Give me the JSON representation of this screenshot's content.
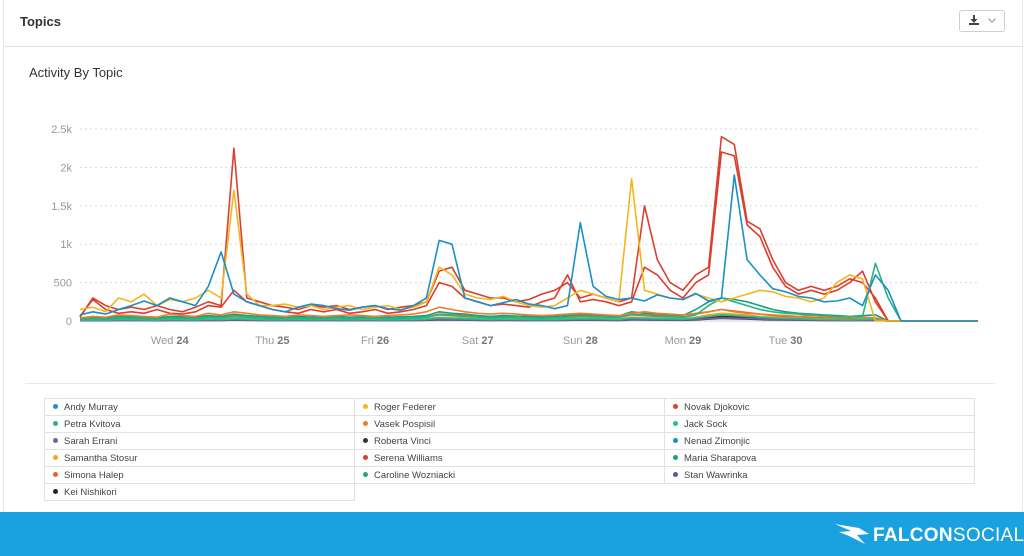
{
  "panel": {
    "title": "Topics",
    "export_icon": "download-icon",
    "dropdown_icon": "chevron-down-icon"
  },
  "footer": {
    "brand_bold": "FALCON",
    "brand_light": "SOCIAL",
    "logo_icon": "falcon-logo-icon"
  },
  "chart_data": {
    "type": "line",
    "title": "Activity By Topic",
    "xlabel": "",
    "ylabel": "",
    "x": [
      0,
      3,
      6,
      9,
      12,
      15,
      18,
      21,
      24,
      27,
      30,
      33,
      36,
      39,
      42,
      45,
      48,
      51,
      54,
      57,
      60,
      63,
      66,
      69,
      72,
      75,
      78,
      81,
      84,
      87,
      90,
      93,
      96,
      99,
      102,
      105,
      108,
      111,
      114,
      117,
      120,
      123,
      126,
      129,
      132,
      135,
      138,
      141,
      144,
      147,
      150,
      153,
      156,
      159,
      162,
      165,
      168,
      171,
      174,
      177,
      180,
      183,
      186,
      189,
      192,
      195,
      198,
      201,
      204,
      207,
      210
    ],
    "x_unit": "hours",
    "x_ticks": [
      {
        "x": 21,
        "day": "Wed",
        "num": "24"
      },
      {
        "x": 45,
        "day": "Thu",
        "num": "25"
      },
      {
        "x": 69,
        "day": "Fri",
        "num": "26"
      },
      {
        "x": 93,
        "day": "Sat",
        "num": "27"
      },
      {
        "x": 117,
        "day": "Sun",
        "num": "28"
      },
      {
        "x": 141,
        "day": "Mon",
        "num": "29"
      },
      {
        "x": 165,
        "day": "Tue",
        "num": "30"
      }
    ],
    "y_ticks": [
      {
        "v": 0,
        "label": "0"
      },
      {
        "v": 500,
        "label": "500"
      },
      {
        "v": 1000,
        "label": "1k"
      },
      {
        "v": 1500,
        "label": "1.5k"
      },
      {
        "v": 2000,
        "label": "2k"
      },
      {
        "v": 2500,
        "label": "2.5k"
      }
    ],
    "xlim": [
      0,
      210
    ],
    "ylim": [
      0,
      2500
    ],
    "grid": true,
    "legend_position": "bottom",
    "series": [
      {
        "name": "Andy Murray",
        "color": "#1a8fc8",
        "values": [
          80,
          120,
          90,
          150,
          200,
          260,
          200,
          300,
          250,
          200,
          450,
          900,
          350,
          250,
          200,
          150,
          120,
          180,
          220,
          200,
          160,
          140,
          180,
          200,
          160,
          140,
          200,
          300,
          1050,
          1000,
          300,
          250,
          200,
          240,
          280,
          220,
          200,
          160,
          200,
          1280,
          450,
          320,
          280,
          300,
          260,
          340,
          300,
          280,
          360,
          260,
          300,
          1900,
          800,
          600,
          420,
          380,
          320,
          300,
          250,
          260,
          300,
          200,
          600,
          400,
          0,
          0,
          0,
          0,
          0,
          0,
          0
        ]
      },
      {
        "name": "Roger Federer",
        "color": "#f3b61f",
        "values": [
          150,
          180,
          120,
          300,
          250,
          350,
          200,
          280,
          250,
          300,
          400,
          300,
          1700,
          350,
          200,
          200,
          220,
          180,
          200,
          150,
          180,
          200,
          150,
          180,
          200,
          150,
          180,
          250,
          700,
          600,
          350,
          300,
          280,
          320,
          250,
          200,
          180,
          200,
          300,
          400,
          350,
          300,
          250,
          1850,
          400,
          350,
          300,
          280,
          350,
          300,
          250,
          300,
          350,
          400,
          380,
          320,
          300,
          250,
          300,
          500,
          600,
          550,
          0,
          0,
          0,
          0,
          0,
          0,
          0,
          0,
          0
        ]
      },
      {
        "name": "Novak Djokovic",
        "color": "#d9412f",
        "values": [
          50,
          300,
          200,
          150,
          180,
          150,
          200,
          150,
          120,
          180,
          250,
          200,
          2250,
          300,
          250,
          200,
          180,
          150,
          200,
          180,
          200,
          150,
          180,
          200,
          150,
          180,
          200,
          250,
          650,
          700,
          400,
          350,
          300,
          300,
          250,
          280,
          350,
          400,
          500,
          300,
          350,
          300,
          250,
          300,
          1500,
          800,
          500,
          400,
          600,
          700,
          2400,
          2300,
          1300,
          1200,
          800,
          500,
          400,
          450,
          400,
          450,
          550,
          500,
          300,
          0,
          0,
          0,
          0,
          0,
          0,
          0,
          0
        ]
      },
      {
        "name": "Petra Kvitova",
        "color": "#2ab37f",
        "values": [
          20,
          30,
          25,
          40,
          35,
          30,
          25,
          40,
          35,
          30,
          50,
          40,
          60,
          50,
          40,
          30,
          35,
          40,
          30,
          35,
          40,
          30,
          35,
          40,
          30,
          35,
          40,
          50,
          80,
          70,
          60,
          50,
          40,
          50,
          45,
          40,
          35,
          40,
          50,
          60,
          55,
          50,
          45,
          80,
          70,
          60,
          55,
          50,
          80,
          200,
          300,
          250,
          200,
          150,
          120,
          100,
          90,
          80,
          70,
          60,
          50,
          60,
          750,
          300,
          0,
          0,
          0,
          0,
          0,
          0,
          0
        ]
      },
      {
        "name": "Vasek Pospisil",
        "color": "#ef7d2f",
        "values": [
          40,
          60,
          50,
          80,
          70,
          60,
          50,
          90,
          70,
          60,
          100,
          80,
          120,
          100,
          80,
          70,
          60,
          80,
          70,
          60,
          70,
          80,
          70,
          60,
          70,
          80,
          90,
          120,
          180,
          150,
          120,
          100,
          90,
          100,
          90,
          80,
          70,
          80,
          90,
          100,
          90,
          80,
          70,
          100,
          120,
          100,
          90,
          80,
          100,
          120,
          150,
          120,
          100,
          90,
          80,
          70,
          60,
          70,
          60,
          50,
          60,
          50,
          40,
          0,
          0,
          0,
          0,
          0,
          0,
          0,
          0
        ]
      },
      {
        "name": "Jack Sock",
        "color": "#21c28e",
        "values": [
          10,
          15,
          12,
          20,
          18,
          15,
          12,
          20,
          18,
          15,
          25,
          20,
          30,
          25,
          20,
          15,
          18,
          20,
          15,
          18,
          20,
          15,
          18,
          20,
          15,
          18,
          20,
          25,
          40,
          35,
          30,
          25,
          20,
          25,
          22,
          20,
          18,
          20,
          25,
          30,
          28,
          25,
          22,
          40,
          35,
          30,
          28,
          25,
          40,
          60,
          80,
          70,
          60,
          50,
          40,
          35,
          30,
          25,
          20,
          18,
          15,
          20,
          25,
          0,
          0,
          0,
          0,
          0,
          0,
          0,
          0
        ]
      },
      {
        "name": "Sarah Errani",
        "color": "#7b5ea7",
        "values": [
          5,
          8,
          6,
          10,
          9,
          8,
          6,
          10,
          9,
          8,
          12,
          10,
          15,
          12,
          10,
          8,
          9,
          10,
          8,
          9,
          10,
          8,
          9,
          10,
          8,
          9,
          10,
          12,
          20,
          18,
          15,
          12,
          10,
          12,
          11,
          10,
          9,
          10,
          12,
          15,
          14,
          12,
          11,
          20,
          18,
          15,
          14,
          12,
          20,
          30,
          40,
          35,
          30,
          25,
          20,
          18,
          15,
          12,
          10,
          9,
          8,
          10,
          12,
          0,
          0,
          0,
          0,
          0,
          0,
          0,
          0
        ]
      },
      {
        "name": "Roberta Vinci",
        "color": "#333333",
        "values": [
          8,
          10,
          9,
          12,
          11,
          10,
          9,
          12,
          11,
          10,
          14,
          12,
          18,
          15,
          12,
          10,
          11,
          12,
          10,
          11,
          12,
          10,
          11,
          12,
          10,
          11,
          12,
          15,
          25,
          22,
          18,
          15,
          12,
          15,
          14,
          12,
          11,
          12,
          15,
          18,
          16,
          15,
          14,
          25,
          22,
          18,
          16,
          15,
          25,
          40,
          60,
          55,
          45,
          35,
          30,
          25,
          20,
          18,
          15,
          12,
          10,
          12,
          15,
          0,
          0,
          0,
          0,
          0,
          0,
          0,
          0
        ]
      },
      {
        "name": "Nenad Zimonjic",
        "color": "#1592b8",
        "values": [
          10,
          12,
          11,
          15,
          14,
          12,
          11,
          15,
          14,
          12,
          18,
          15,
          22,
          18,
          15,
          12,
          14,
          15,
          12,
          14,
          15,
          12,
          14,
          15,
          12,
          14,
          15,
          18,
          30,
          25,
          22,
          18,
          15,
          18,
          16,
          15,
          14,
          15,
          18,
          22,
          20,
          18,
          16,
          30,
          25,
          22,
          20,
          18,
          30,
          45,
          60,
          55,
          45,
          35,
          30,
          25,
          20,
          18,
          15,
          14,
          12,
          14,
          18,
          0,
          0,
          0,
          0,
          0,
          0,
          0,
          0
        ]
      },
      {
        "name": "Samantha Stosur",
        "color": "#f0a81e",
        "values": [
          15,
          20,
          18,
          25,
          22,
          20,
          18,
          25,
          22,
          20,
          30,
          25,
          40,
          30,
          25,
          20,
          22,
          25,
          20,
          22,
          25,
          20,
          22,
          25,
          20,
          22,
          25,
          30,
          50,
          45,
          40,
          30,
          25,
          30,
          28,
          25,
          22,
          25,
          30,
          40,
          35,
          30,
          28,
          50,
          45,
          40,
          35,
          30,
          50,
          80,
          100,
          90,
          80,
          60,
          50,
          40,
          35,
          30,
          25,
          22,
          20,
          25,
          30,
          0,
          0,
          0,
          0,
          0,
          0,
          0,
          0
        ]
      },
      {
        "name": "Serena Williams",
        "color": "#e03b2c",
        "values": [
          60,
          280,
          150,
          100,
          120,
          100,
          150,
          100,
          90,
          120,
          200,
          180,
          400,
          250,
          200,
          150,
          120,
          100,
          150,
          120,
          150,
          100,
          120,
          150,
          100,
          120,
          150,
          200,
          500,
          450,
          300,
          250,
          200,
          220,
          200,
          180,
          250,
          300,
          600,
          250,
          280,
          250,
          200,
          250,
          700,
          600,
          400,
          300,
          500,
          600,
          2200,
          2150,
          1250,
          1100,
          700,
          450,
          350,
          400,
          350,
          400,
          500,
          650,
          250,
          0,
          0,
          0,
          0,
          0,
          0,
          0,
          0
        ]
      },
      {
        "name": "Maria Sharapova",
        "color": "#18a086",
        "values": [
          30,
          50,
          40,
          60,
          55,
          50,
          40,
          60,
          55,
          50,
          70,
          60,
          90,
          70,
          60,
          50,
          55,
          60,
          50,
          55,
          60,
          50,
          55,
          60,
          50,
          55,
          60,
          70,
          120,
          100,
          90,
          70,
          60,
          70,
          65,
          60,
          55,
          60,
          70,
          90,
          80,
          70,
          65,
          120,
          100,
          90,
          80,
          70,
          150,
          250,
          300,
          280,
          250,
          200,
          150,
          120,
          100,
          90,
          80,
          70,
          60,
          70,
          80,
          0,
          0,
          0,
          0,
          0,
          0,
          0,
          0
        ]
      },
      {
        "name": "Simona Halep",
        "color": "#e5642d",
        "values": [
          20,
          30,
          25,
          40,
          35,
          30,
          25,
          40,
          35,
          30,
          50,
          40,
          70,
          50,
          40,
          30,
          35,
          40,
          30,
          35,
          40,
          30,
          35,
          40,
          30,
          35,
          40,
          50,
          90,
          80,
          70,
          50,
          40,
          50,
          45,
          40,
          35,
          40,
          50,
          70,
          60,
          50,
          45,
          90,
          80,
          70,
          60,
          50,
          90,
          120,
          150,
          130,
          110,
          90,
          70,
          60,
          50,
          45,
          40,
          35,
          30,
          35,
          40,
          0,
          0,
          0,
          0,
          0,
          0,
          0,
          0
        ]
      },
      {
        "name": "Caroline Wozniacki",
        "color": "#29a86b",
        "values": [
          12,
          18,
          15,
          22,
          20,
          18,
          15,
          22,
          20,
          18,
          28,
          22,
          35,
          28,
          22,
          18,
          20,
          22,
          18,
          20,
          22,
          18,
          20,
          22,
          18,
          20,
          22,
          28,
          45,
          40,
          35,
          28,
          22,
          28,
          25,
          22,
          20,
          22,
          28,
          35,
          32,
          28,
          25,
          45,
          40,
          35,
          32,
          28,
          45,
          70,
          90,
          80,
          70,
          55,
          45,
          38,
          32,
          28,
          22,
          20,
          18,
          22,
          28,
          0,
          0,
          0,
          0,
          0,
          0,
          0,
          0
        ]
      },
      {
        "name": "Stan Wawrinka",
        "color": "#5a5a8a",
        "values": [
          6,
          9,
          7,
          11,
          10,
          9,
          7,
          11,
          10,
          9,
          13,
          11,
          16,
          13,
          11,
          9,
          10,
          11,
          9,
          10,
          11,
          9,
          10,
          11,
          9,
          10,
          11,
          13,
          22,
          20,
          16,
          13,
          11,
          13,
          12,
          11,
          10,
          11,
          13,
          16,
          15,
          13,
          12,
          22,
          20,
          16,
          15,
          13,
          22,
          35,
          45,
          40,
          35,
          28,
          22,
          20,
          16,
          13,
          11,
          10,
          9,
          11,
          13,
          0,
          0,
          0,
          0,
          0,
          0,
          0,
          0
        ]
      },
      {
        "name": "Kei Nishikori",
        "color": "#222222",
        "values": [
          4,
          6,
          5,
          8,
          7,
          6,
          5,
          8,
          7,
          6,
          9,
          8,
          12,
          9,
          8,
          6,
          7,
          8,
          6,
          7,
          8,
          6,
          7,
          8,
          6,
          7,
          8,
          9,
          16,
          14,
          12,
          9,
          8,
          9,
          8,
          8,
          7,
          8,
          9,
          12,
          11,
          9,
          8,
          16,
          14,
          12,
          11,
          9,
          16,
          25,
          35,
          30,
          25,
          20,
          16,
          14,
          12,
          9,
          8,
          7,
          6,
          8,
          9,
          0,
          0,
          0,
          0,
          0,
          0,
          0,
          0
        ]
      }
    ]
  }
}
